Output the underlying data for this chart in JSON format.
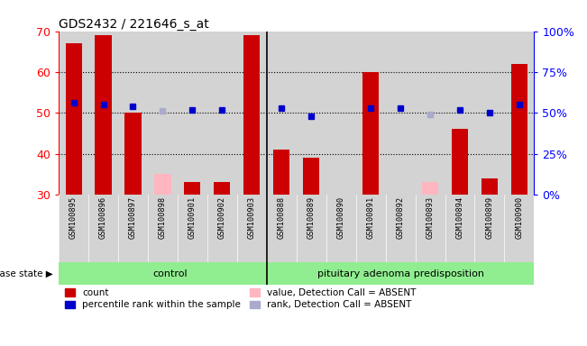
{
  "title": "GDS2432 / 221646_s_at",
  "categories": [
    "GSM100895",
    "GSM100896",
    "GSM100897",
    "GSM100898",
    "GSM100901",
    "GSM100902",
    "GSM100903",
    "GSM100888",
    "GSM100889",
    "GSM100890",
    "GSM100891",
    "GSM100892",
    "GSM100893",
    "GSM100894",
    "GSM100899",
    "GSM100900"
  ],
  "control_count": 7,
  "bar_values": [
    67,
    69,
    50,
    null,
    33,
    33,
    69,
    41,
    39,
    30,
    60,
    null,
    null,
    46,
    34,
    62
  ],
  "absent_bar_values": [
    null,
    null,
    null,
    35,
    null,
    null,
    null,
    null,
    null,
    null,
    null,
    null,
    33,
    null,
    null,
    null
  ],
  "percentile_values": [
    56,
    55,
    54,
    null,
    52,
    52,
    null,
    53,
    48,
    null,
    53,
    53,
    null,
    52,
    50,
    55
  ],
  "absent_percentile_values": [
    null,
    null,
    null,
    51,
    null,
    null,
    null,
    null,
    null,
    null,
    null,
    null,
    49,
    null,
    null,
    null
  ],
  "ylim": [
    30,
    70
  ],
  "y2lim": [
    0,
    100
  ],
  "yticks": [
    30,
    40,
    50,
    60,
    70
  ],
  "y2ticks": [
    0,
    25,
    50,
    75,
    100
  ],
  "bar_color": "#cc0000",
  "absent_bar_color": "#ffb6c1",
  "dot_color": "#0000cc",
  "absent_dot_color": "#aaaacc",
  "control_label": "control",
  "condition_label": "pituitary adenoma predisposition",
  "disease_label": "disease state",
  "legend_items": [
    {
      "label": "count",
      "color": "#cc0000"
    },
    {
      "label": "percentile rank within the sample",
      "color": "#0000cc"
    },
    {
      "label": "value, Detection Call = ABSENT",
      "color": "#ffb6c1"
    },
    {
      "label": "rank, Detection Call = ABSENT",
      "color": "#aaaacc"
    }
  ],
  "background_color": "#ffffff",
  "plot_bg_color": "#d3d3d3",
  "green_band_color": "#90ee90",
  "figsize": [
    6.51,
    3.84
  ],
  "dpi": 100
}
